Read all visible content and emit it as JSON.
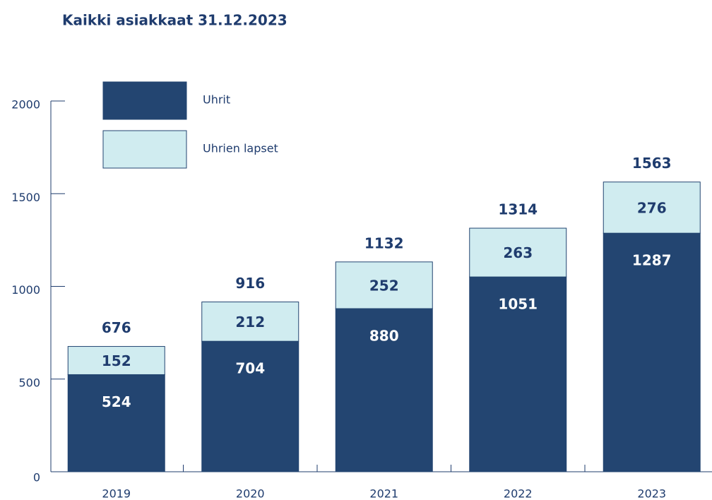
{
  "chart_data": {
    "type": "stacked_bar",
    "title": "Kaikki asiakkaat 31.12.2023",
    "categories": [
      "2019",
      "2020",
      "2021",
      "2022",
      "2023"
    ],
    "series": [
      {
        "name": "Uhrit",
        "color": "#234571",
        "values": [
          524,
          704,
          880,
          1051,
          1287
        ]
      },
      {
        "name": "Uhrien lapset",
        "color": "#d0ecf0",
        "values": [
          152,
          212,
          252,
          263,
          276
        ]
      }
    ],
    "totals": [
      676,
      916,
      1132,
      1314,
      1563
    ],
    "ylim": [
      0,
      2000
    ],
    "yticks": [
      0,
      500,
      1000,
      1500,
      2000
    ]
  }
}
